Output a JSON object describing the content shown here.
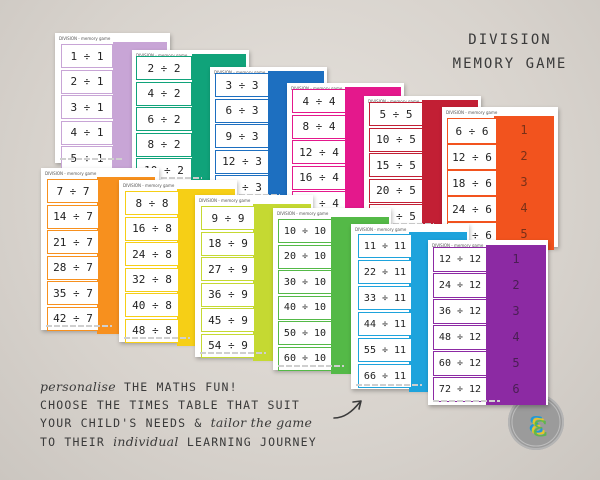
{
  "title": {
    "line1": "DIVISION",
    "line2": "MEMORY GAME"
  },
  "sheet_header": "DIVISION - memory game",
  "sheets": [
    {
      "id": "div1",
      "color": "#c8a5d6",
      "cards": [
        "1 ÷ 1",
        "2 ÷ 1",
        "3 ÷ 1",
        "4 ÷ 1",
        "5 ÷ 1"
      ],
      "answers": []
    },
    {
      "id": "div2",
      "color": "#10a37a",
      "cards": [
        "2 ÷ 2",
        "4 ÷ 2",
        "6 ÷ 2",
        "8 ÷ 2",
        "10 ÷ 2"
      ],
      "answers": []
    },
    {
      "id": "div3",
      "color": "#1d6fc0",
      "cards": [
        "3 ÷ 3",
        "6 ÷ 3",
        "9 ÷ 3",
        "12 ÷ 3",
        "15 ÷ 3"
      ],
      "answers": []
    },
    {
      "id": "div4",
      "color": "#e4188c",
      "cards": [
        "4 ÷ 4",
        "8 ÷ 4",
        "12 ÷ 4",
        "16 ÷ 4",
        "20 ÷ 4"
      ],
      "answers": []
    },
    {
      "id": "div5",
      "color": "#c21f34",
      "cards": [
        "5 ÷ 5",
        "10 ÷ 5",
        "15 ÷ 5",
        "20 ÷ 5",
        "25 ÷ 5"
      ],
      "answers": []
    },
    {
      "id": "div6",
      "color": "#f2531e",
      "cards": [
        "6 ÷ 6",
        "12 ÷ 6",
        "18 ÷ 6",
        "24 ÷ 6",
        "30 ÷ 6"
      ],
      "answers": [
        "1",
        "2",
        "3",
        "4",
        "5"
      ]
    },
    {
      "id": "div7",
      "color": "#f7901e",
      "cards": [
        "7 ÷ 7",
        "14 ÷ 7",
        "21 ÷ 7",
        "28 ÷ 7",
        "35 ÷ 7",
        "42 ÷ 7"
      ],
      "answers": []
    },
    {
      "id": "div8",
      "color": "#f6cf16",
      "cards": [
        "8 ÷ 8",
        "16 ÷ 8",
        "24 ÷ 8",
        "32 ÷ 8",
        "40 ÷ 8",
        "48 ÷ 8"
      ],
      "answers": []
    },
    {
      "id": "div9",
      "color": "#c5d932",
      "cards": [
        "9 ÷ 9",
        "18 ÷ 9",
        "27 ÷ 9",
        "36 ÷ 9",
        "45 ÷ 9",
        "54 ÷ 9"
      ],
      "answers": []
    },
    {
      "id": "div10",
      "color": "#54b947",
      "cards": [
        "10 ÷ 10",
        "20 ÷ 10",
        "30 ÷ 10",
        "40 ÷ 10",
        "50 ÷ 10",
        "60 ÷ 10"
      ],
      "answers": []
    },
    {
      "id": "div11",
      "color": "#1ea3dc",
      "cards": [
        "11 ÷ 11",
        "22 ÷ 11",
        "33 ÷ 11",
        "44 ÷ 11",
        "55 ÷ 11",
        "66 ÷ 11"
      ],
      "answers": []
    },
    {
      "id": "div12",
      "color": "#8c2aa3",
      "cards": [
        "12 ÷ 12",
        "24 ÷ 12",
        "36 ÷ 12",
        "48 ÷ 12",
        "60 ÷ 12",
        "72 ÷ 12"
      ],
      "answers": [
        "1",
        "2",
        "3",
        "4",
        "5",
        "6"
      ]
    }
  ],
  "promo": {
    "line1_accent": "personalise",
    "line1_rest": " THE MATHS FUN!",
    "line2": "CHOOSE THE TIMES TABLE THAT SUIT",
    "line3_a": "YOUR CHILD'S NEEDS & ",
    "line3_accent": "tailor the game",
    "line4_a": "TO THEIR ",
    "line4_accent": "individual",
    "line4_b": " LEARNING JOURNEY"
  },
  "logo": {
    "color": "#9b9b9b"
  }
}
